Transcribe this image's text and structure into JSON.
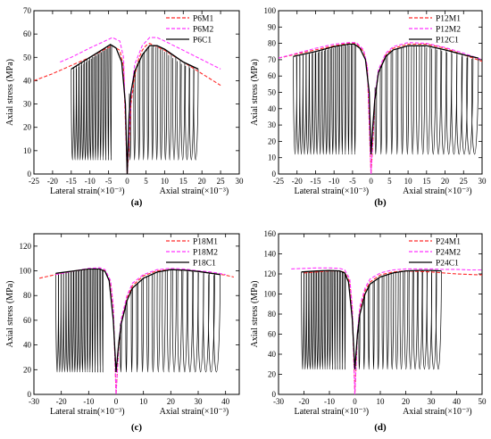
{
  "chart_data": [
    {
      "type": "line",
      "panel_label": "(a)",
      "xlabel_left": "Lateral strain(×10⁻³)",
      "xlabel_right": "Axial strain(×10⁻³)",
      "ylabel": "Axial stress (MPa)",
      "xlim": [
        -25,
        30
      ],
      "ylim": [
        0,
        70
      ],
      "xticks": [
        -25,
        -20,
        -15,
        -10,
        -5,
        0,
        5,
        10,
        15,
        20,
        25,
        30
      ],
      "yticks": [
        0,
        10,
        20,
        30,
        40,
        50,
        60,
        70
      ],
      "cyclic": {
        "n": 16,
        "lat_start": -15,
        "lat_end": -4.5,
        "ax_start": 1,
        "ax_end": 19,
        "lower": 6
      },
      "legend": [
        {
          "name": "P6M1",
          "color": "#ff2a2a",
          "dash": "4,2"
        },
        {
          "name": "P6M2",
          "color": "#ff33ff",
          "dash": "4,2"
        },
        {
          "name": "P6C1",
          "color": "#000000",
          "dash": ""
        }
      ],
      "series": [
        {
          "name": "P6M1",
          "color": "#ff2a2a",
          "dash": "4,2",
          "x": [
            -25,
            -20,
            -15,
            -10,
            -6,
            -4,
            -2,
            -1,
            0,
            0.5,
            1,
            2,
            3,
            4,
            5,
            6,
            8,
            10,
            15,
            20,
            25
          ],
          "y": [
            40,
            43,
            46.5,
            50,
            53.5,
            55,
            53,
            46,
            0,
            12,
            30,
            42,
            49,
            53,
            55,
            56,
            54.5,
            53,
            48,
            43,
            38
          ]
        },
        {
          "name": "P6M2",
          "color": "#ff33ff",
          "dash": "4,2",
          "x": [
            -18,
            -15,
            -10,
            -6,
            -4,
            -2,
            -1,
            0,
            1,
            2,
            4,
            6,
            8,
            10,
            15,
            20,
            25
          ],
          "y": [
            48,
            50,
            54,
            57,
            58.5,
            57,
            50,
            0,
            33,
            47,
            55,
            58.5,
            58.5,
            57,
            53,
            49,
            45
          ]
        },
        {
          "name": "P6C1",
          "color": "#000000",
          "dash": "",
          "x": [
            -15,
            -10,
            -6,
            -4.5,
            -3,
            -1.5,
            -0.5,
            0,
            0.5,
            1,
            2,
            4,
            6,
            8,
            10,
            15,
            19
          ],
          "y": [
            45,
            50,
            54,
            55.5,
            54,
            48,
            30,
            0,
            25,
            35,
            44,
            51,
            55,
            55,
            53.5,
            48,
            45
          ]
        }
      ]
    },
    {
      "type": "line",
      "panel_label": "(b)",
      "xlabel_left": "Lateral strain(×10⁻³)",
      "xlabel_right": "Axial strain(×10⁻³)",
      "ylabel": "Axial stress (MPa)",
      "xlim": [
        -25,
        30
      ],
      "ylim": [
        0,
        100
      ],
      "xticks": [
        -25,
        -20,
        -15,
        -10,
        -5,
        0,
        5,
        10,
        15,
        20,
        25,
        30
      ],
      "yticks": [
        0,
        10,
        20,
        30,
        40,
        50,
        60,
        70,
        80,
        90,
        100
      ],
      "cyclic": {
        "n": 20,
        "lat_start": -21,
        "lat_end": -4.5,
        "ax_start": 1.5,
        "ax_end": 29,
        "lower": 12
      },
      "legend": [
        {
          "name": "P12M1",
          "color": "#ff2a2a",
          "dash": "4,2"
        },
        {
          "name": "P12M2",
          "color": "#ff33ff",
          "dash": "4,2"
        },
        {
          "name": "P12C1",
          "color": "#000000",
          "dash": ""
        }
      ],
      "series": [
        {
          "name": "P12M1",
          "color": "#ff2a2a",
          "dash": "4,2",
          "x": [
            -25,
            -20,
            -15,
            -10,
            -6,
            -4,
            -2,
            -1,
            0,
            0.5,
            1,
            2,
            4,
            6,
            10,
            15,
            20,
            25,
            30
          ],
          "y": [
            71,
            73.5,
            76,
            78.5,
            80,
            80,
            75,
            65,
            0,
            20,
            45,
            62,
            73,
            77,
            79.5,
            79.5,
            77,
            73,
            69
          ]
        },
        {
          "name": "P12M2",
          "color": "#ff33ff",
          "dash": "4,2",
          "x": [
            -25,
            -20,
            -15,
            -10,
            -6,
            -4,
            -2,
            -1,
            0,
            1,
            2,
            4,
            6,
            10,
            15,
            20,
            25,
            30
          ],
          "y": [
            71,
            74,
            77,
            79.5,
            80.5,
            80.5,
            76,
            66,
            0,
            47,
            64,
            74,
            78,
            80.5,
            80,
            77.5,
            74,
            70
          ]
        },
        {
          "name": "P12C1",
          "color": "#000000",
          "dash": "",
          "x": [
            -21,
            -15,
            -10,
            -6,
            -4.5,
            -3,
            -1.5,
            -0.5,
            0,
            0.5,
            1,
            2,
            4,
            6,
            10,
            15,
            20,
            25,
            29
          ],
          "y": [
            72,
            75,
            78,
            79.5,
            79.5,
            77,
            70,
            50,
            12,
            30,
            45,
            62,
            72,
            76,
            78.5,
            78.5,
            76,
            73,
            71
          ]
        }
      ]
    },
    {
      "type": "line",
      "panel_label": "(c)",
      "xlabel_left": "Lateral strain(×10⁻³)",
      "xlabel_right": "Axial strain(×10⁻³)",
      "ylabel": "Axial stress (MPa)",
      "xlim": [
        -30,
        45
      ],
      "ylim": [
        0,
        130
      ],
      "xticks": [
        -30,
        -20,
        -10,
        0,
        10,
        20,
        30,
        40
      ],
      "yticks": [
        0,
        20,
        40,
        60,
        80,
        100,
        120
      ],
      "cyclic": {
        "n": 19,
        "lat_start": -22,
        "lat_end": -5,
        "ax_start": 2,
        "ax_end": 38,
        "lower": 18
      },
      "legend": [
        {
          "name": "P18M1",
          "color": "#ff2a2a",
          "dash": "4,2"
        },
        {
          "name": "P18M2",
          "color": "#ff33ff",
          "dash": "4,2"
        },
        {
          "name": "P18C1",
          "color": "#000000",
          "dash": ""
        }
      ],
      "series": [
        {
          "name": "P18M1",
          "color": "#ff2a2a",
          "dash": "4,2",
          "x": [
            -28,
            -20,
            -15,
            -10,
            -6,
            -4,
            -2,
            -1,
            0,
            1,
            2,
            4,
            6,
            10,
            15,
            20,
            25,
            30,
            35,
            40,
            43
          ],
          "y": [
            94,
            98,
            100,
            101.5,
            101.5,
            100,
            90,
            70,
            0,
            40,
            60,
            78,
            88,
            96,
            100,
            101,
            100.5,
            99.5,
            98,
            96.5,
            95
          ]
        },
        {
          "name": "P18M2",
          "color": "#ff33ff",
          "dash": "4,2",
          "x": [
            -22,
            -15,
            -10,
            -6,
            -4,
            -2,
            -1,
            0,
            1,
            2,
            4,
            6,
            10,
            15,
            20,
            25,
            30,
            35,
            40
          ],
          "y": [
            97,
            100,
            102,
            102.5,
            101,
            92,
            72,
            0,
            42,
            62,
            80,
            90,
            97,
            101,
            102,
            101.5,
            100,
            99,
            97
          ]
        },
        {
          "name": "P18C1",
          "color": "#000000",
          "dash": "",
          "x": [
            -22,
            -15,
            -10,
            -6,
            -4,
            -2.5,
            -1,
            0,
            1,
            2,
            4,
            6,
            10,
            15,
            20,
            25,
            30,
            38
          ],
          "y": [
            98,
            100,
            101.5,
            101.5,
            99.5,
            92,
            60,
            18,
            42,
            58,
            76,
            86,
            94,
            99,
            101,
            100.5,
            99.5,
            97
          ]
        }
      ]
    },
    {
      "type": "line",
      "panel_label": "(d)",
      "xlabel_left": "Lateral strain(×10⁻³)",
      "xlabel_right": "Axial strain(×10⁻³)",
      "ylabel": "Axial stress (MPa)",
      "xlim": [
        -30,
        50
      ],
      "ylim": [
        0,
        160
      ],
      "xticks": [
        -30,
        -20,
        -10,
        0,
        10,
        20,
        30,
        40,
        50
      ],
      "yticks": [
        0,
        20,
        40,
        60,
        80,
        100,
        120,
        140,
        160
      ],
      "cyclic": {
        "n": 18,
        "lat_start": -21,
        "lat_end": -4,
        "ax_start": 2,
        "ax_end": 34,
        "lower": 25
      },
      "legend": [
        {
          "name": "P24M1",
          "color": "#ff2a2a",
          "dash": "4,2"
        },
        {
          "name": "P24M2",
          "color": "#ff33ff",
          "dash": "4,2"
        },
        {
          "name": "P24C1",
          "color": "#000000",
          "dash": ""
        }
      ],
      "series": [
        {
          "name": "P24M1",
          "color": "#ff2a2a",
          "dash": "4,2",
          "x": [
            -20,
            -15,
            -10,
            -6,
            -4,
            -2,
            -1,
            0,
            1,
            2,
            4,
            6,
            10,
            15,
            20,
            25,
            30,
            35,
            40,
            45,
            50
          ],
          "y": [
            121,
            122,
            123,
            123,
            121.5,
            112,
            85,
            0,
            60,
            85,
            103,
            112,
            119,
            122,
            123,
            122.5,
            122,
            121,
            120,
            119.5,
            119
          ]
        },
        {
          "name": "P24M2",
          "color": "#ff33ff",
          "dash": "4,2",
          "x": [
            -25,
            -20,
            -15,
            -10,
            -6,
            -4,
            -2,
            -1,
            0,
            1,
            2,
            4,
            6,
            10,
            15,
            20,
            25,
            30,
            35,
            40,
            45,
            50
          ],
          "y": [
            125,
            125.5,
            126,
            126,
            125.5,
            124,
            115,
            88,
            0,
            62,
            88,
            106,
            115,
            121,
            124,
            125,
            125,
            125,
            124.5,
            124.5,
            124,
            124
          ]
        },
        {
          "name": "P24C1",
          "color": "#000000",
          "dash": "",
          "x": [
            -21,
            -15,
            -10,
            -6,
            -4,
            -2.5,
            -1,
            0,
            1,
            2,
            4,
            6,
            10,
            15,
            20,
            25,
            30,
            34
          ],
          "y": [
            122,
            123,
            123.5,
            123,
            121,
            112,
            75,
            25,
            60,
            80,
            100,
            110,
            117,
            121,
            123,
            123.5,
            123.5,
            123
          ]
        }
      ]
    }
  ]
}
